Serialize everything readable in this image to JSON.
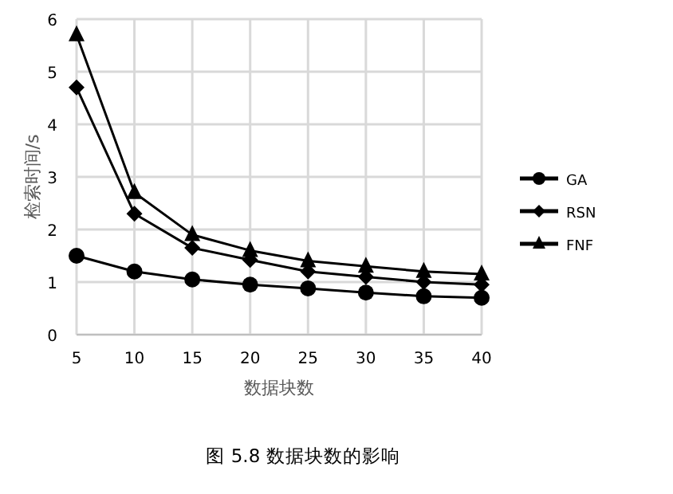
{
  "chart_data": {
    "type": "line",
    "xlabel": "数据块数",
    "ylabel": "检索时间/s",
    "x": [
      5,
      10,
      15,
      20,
      25,
      30,
      35,
      40
    ],
    "xlim": [
      5,
      40
    ],
    "xticks": [
      5,
      10,
      15,
      20,
      25,
      30,
      35,
      40
    ],
    "ylim": [
      0,
      6
    ],
    "yticks": [
      0,
      1,
      2,
      3,
      4,
      5,
      6
    ],
    "grid": true,
    "legend": "right",
    "series": [
      {
        "name": "GA",
        "color": "#000000",
        "marker": "circle",
        "values": [
          1.5,
          1.2,
          1.05,
          0.95,
          0.88,
          0.8,
          0.73,
          0.7
        ]
      },
      {
        "name": "RSN",
        "color": "#000000",
        "marker": "diamond",
        "values": [
          4.7,
          2.3,
          1.65,
          1.42,
          1.2,
          1.1,
          1.0,
          0.95
        ]
      },
      {
        "name": "FNF",
        "color": "#000000",
        "marker": "triangle",
        "values": [
          5.7,
          2.7,
          1.9,
          1.6,
          1.4,
          1.3,
          1.2,
          1.15
        ]
      }
    ],
    "annotations": [
      "图 5.8 数据块数的影响"
    ]
  }
}
